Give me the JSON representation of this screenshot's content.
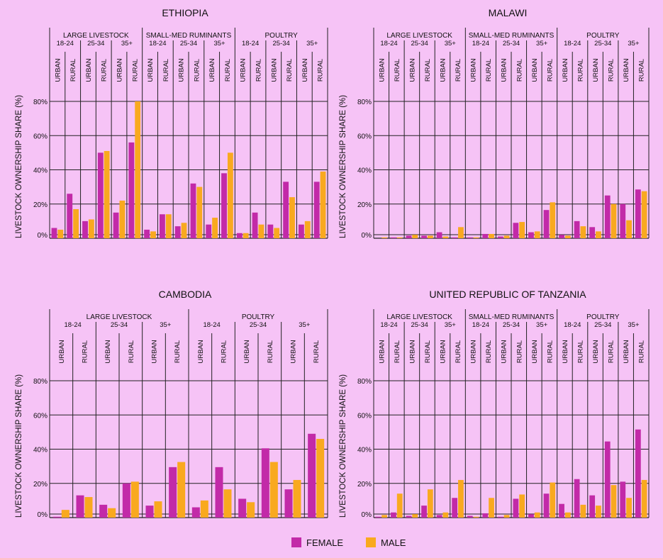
{
  "colors": {
    "background": "#F6C3F6",
    "female": "#C22AA8",
    "male": "#F9A91F",
    "line": "#222222"
  },
  "legend": {
    "female_label": "FEMALE",
    "male_label": "MALE"
  },
  "chart_data": [
    {
      "type": "bar",
      "title": "ETHIOPIA",
      "ylabel": "LIVESTOCK OWNERSHIP SHARE (%)",
      "ylim": [
        0,
        80
      ],
      "yticks": [
        "0%",
        "20%",
        "40%",
        "60%",
        "80%"
      ],
      "groups": [
        {
          "label": "LARGE LIVESTOCK",
          "ages": [
            {
              "label": "18-24",
              "cols": [
                {
                  "label": "URBAN",
                  "female": 6,
                  "male": 5
                },
                {
                  "label": "RURAL",
                  "female": 26,
                  "male": 17
                }
              ]
            },
            {
              "label": "25-34",
              "cols": [
                {
                  "label": "URBAN",
                  "female": 10,
                  "male": 11
                },
                {
                  "label": "RURAL",
                  "female": 50,
                  "male": 51
                }
              ]
            },
            {
              "label": "35+",
              "cols": [
                {
                  "label": "URBAN",
                  "female": 15,
                  "male": 22
                },
                {
                  "label": "RURAL",
                  "female": 56,
                  "male": 80
                }
              ]
            }
          ]
        },
        {
          "label": "SMALL-MED RUMINANTS",
          "ages": [
            {
              "label": "18-24",
              "cols": [
                {
                  "label": "URBAN",
                  "female": 5,
                  "male": 4
                },
                {
                  "label": "RURAL",
                  "female": 14,
                  "male": 14
                }
              ]
            },
            {
              "label": "25-34",
              "cols": [
                {
                  "label": "URBAN",
                  "female": 7,
                  "male": 9
                },
                {
                  "label": "RURAL",
                  "female": 32,
                  "male": 30
                }
              ]
            },
            {
              "label": "35+",
              "cols": [
                {
                  "label": "URBAN",
                  "female": 8,
                  "male": 12
                },
                {
                  "label": "RURAL",
                  "female": 38,
                  "male": 50
                }
              ]
            }
          ]
        },
        {
          "label": "POULTRY",
          "ages": [
            {
              "label": "18-24",
              "cols": [
                {
                  "label": "URBAN",
                  "female": 3,
                  "male": 3
                },
                {
                  "label": "RURAL",
                  "female": 15,
                  "male": 8
                }
              ]
            },
            {
              "label": "25-34",
              "cols": [
                {
                  "label": "URBAN",
                  "female": 8,
                  "male": 6
                },
                {
                  "label": "RURAL",
                  "female": 33,
                  "male": 24
                }
              ]
            },
            {
              "label": "35+",
              "cols": [
                {
                  "label": "URBAN",
                  "female": 8,
                  "male": 10
                },
                {
                  "label": "RURAL",
                  "female": 33,
                  "male": 39
                }
              ]
            }
          ]
        }
      ]
    },
    {
      "type": "bar",
      "title": "MALAWI",
      "ylabel": "LIVESTOCK OWNERSHIP SHARE (%)",
      "ylim": [
        0,
        80
      ],
      "yticks": [
        "0%",
        "20%",
        "40%",
        "60%",
        "80%"
      ],
      "groups": [
        {
          "label": "LARGE LIVESTOCK",
          "ages": [
            {
              "label": "18-24",
              "cols": [
                {
                  "label": "URBAN",
                  "female": 0,
                  "male": 0.5
                },
                {
                  "label": "RURAL",
                  "female": 0.5,
                  "male": 0.5
                }
              ]
            },
            {
              "label": "25-34",
              "cols": [
                {
                  "label": "URBAN",
                  "female": 1.5,
                  "male": 2
                },
                {
                  "label": "RURAL",
                  "female": 1.5,
                  "male": 1.5
                }
              ]
            },
            {
              "label": "35+",
              "cols": [
                {
                  "label": "URBAN",
                  "female": 3.5,
                  "male": 1
                },
                {
                  "label": "RURAL",
                  "female": 0.5,
                  "male": 6.5
                }
              ]
            }
          ]
        },
        {
          "label": "SMALL-MED RUMINANTS",
          "ages": [
            {
              "label": "18-24",
              "cols": [
                {
                  "label": "URBAN",
                  "female": 0.5,
                  "male": 0.5
                },
                {
                  "label": "RURAL",
                  "female": 2.5,
                  "male": 2.5
                }
              ]
            },
            {
              "label": "25-34",
              "cols": [
                {
                  "label": "URBAN",
                  "female": 1,
                  "male": 1.5
                },
                {
                  "label": "RURAL",
                  "female": 9,
                  "male": 9.5
                }
              ]
            },
            {
              "label": "35+",
              "cols": [
                {
                  "label": "URBAN",
                  "female": 3.5,
                  "male": 4
                },
                {
                  "label": "RURAL",
                  "female": 16.5,
                  "male": 21
                }
              ]
            }
          ]
        },
        {
          "label": "POULTRY",
          "ages": [
            {
              "label": "18-24",
              "cols": [
                {
                  "label": "URBAN",
                  "female": 2,
                  "male": 1.5
                },
                {
                  "label": "RURAL",
                  "female": 10,
                  "male": 7
                }
              ]
            },
            {
              "label": "25-34",
              "cols": [
                {
                  "label": "URBAN",
                  "female": 6.5,
                  "male": 4
                },
                {
                  "label": "RURAL",
                  "female": 25,
                  "male": 20
                }
              ]
            },
            {
              "label": "35+",
              "cols": [
                {
                  "label": "URBAN",
                  "female": 20,
                  "male": 10.5
                },
                {
                  "label": "RURAL",
                  "female": 28.5,
                  "male": 27.5
                }
              ]
            }
          ]
        }
      ]
    },
    {
      "type": "bar",
      "title": "CAMBODIA",
      "ylabel": "LIVESTOCK OWNERSHIP SHARE (%)",
      "ylim": [
        0,
        80
      ],
      "yticks": [
        "0%",
        "20%",
        "40%",
        "60%",
        "80%"
      ],
      "groups": [
        {
          "label": "LARGE LIVESTOCK",
          "ages": [
            {
              "label": "18-24",
              "cols": [
                {
                  "label": "URBAN",
                  "female": 0.5,
                  "male": 4.5
                },
                {
                  "label": "RURAL",
                  "female": 13,
                  "male": 12
                }
              ]
            },
            {
              "label": "25-34",
              "cols": [
                {
                  "label": "URBAN",
                  "female": 7.5,
                  "male": 5.5
                },
                {
                  "label": "RURAL",
                  "female": 20,
                  "male": 21
                }
              ]
            },
            {
              "label": "35+",
              "cols": [
                {
                  "label": "URBAN",
                  "female": 7,
                  "male": 9.5
                },
                {
                  "label": "RURAL",
                  "female": 29.5,
                  "male": 32.5
                }
              ]
            }
          ]
        },
        {
          "label": "POULTRY",
          "ages": [
            {
              "label": "18-24",
              "cols": [
                {
                  "label": "URBAN",
                  "female": 6,
                  "male": 10
                },
                {
                  "label": "RURAL",
                  "female": 29.5,
                  "male": 16.5
                }
              ]
            },
            {
              "label": "25-34",
              "cols": [
                {
                  "label": "URBAN",
                  "female": 11,
                  "male": 9
                },
                {
                  "label": "RURAL",
                  "female": 40.5,
                  "male": 32.5
                }
              ]
            },
            {
              "label": "35+",
              "cols": [
                {
                  "label": "URBAN",
                  "female": 16.5,
                  "male": 22
                },
                {
                  "label": "RURAL",
                  "female": 49,
                  "male": 46
                }
              ]
            }
          ]
        }
      ]
    },
    {
      "type": "bar",
      "title": "UNITED REPUBLIC OF TANZANIA",
      "ylabel": "LIVESTOCK OWNERSHIP SHARE (%)",
      "ylim": [
        0,
        80
      ],
      "yticks": [
        "0%",
        "20%",
        "40%",
        "60%",
        "80%"
      ],
      "groups": [
        {
          "label": "LARGE LIVESTOCK",
          "ages": [
            {
              "label": "18-24",
              "cols": [
                {
                  "label": "URBAN",
                  "female": 0.5,
                  "male": 1.5
                },
                {
                  "label": "RURAL",
                  "female": 3,
                  "male": 14
                }
              ]
            },
            {
              "label": "25-34",
              "cols": [
                {
                  "label": "URBAN",
                  "female": 1,
                  "male": 2
                },
                {
                  "label": "RURAL",
                  "female": 7,
                  "male": 16.5
                }
              ]
            },
            {
              "label": "35+",
              "cols": [
                {
                  "label": "URBAN",
                  "female": 1.5,
                  "male": 3
                },
                {
                  "label": "RURAL",
                  "female": 11.5,
                  "male": 22
                }
              ]
            }
          ]
        },
        {
          "label": "SMALL-MED RUMINANTS",
          "ages": [
            {
              "label": "18-24",
              "cols": [
                {
                  "label": "URBAN",
                  "female": 1,
                  "male": 0.5
                },
                {
                  "label": "RURAL",
                  "female": 2.5,
                  "male": 11.5
                }
              ]
            },
            {
              "label": "25-34",
              "cols": [
                {
                  "label": "URBAN",
                  "female": 0.5,
                  "male": 1.5
                },
                {
                  "label": "RURAL",
                  "female": 11,
                  "male": 13.5
                }
              ]
            },
            {
              "label": "35+",
              "cols": [
                {
                  "label": "URBAN",
                  "female": 2,
                  "male": 3
                },
                {
                  "label": "RURAL",
                  "female": 14,
                  "male": 20.5
                }
              ]
            }
          ]
        },
        {
          "label": "POULTRY",
          "ages": [
            {
              "label": "18-24",
              "cols": [
                {
                  "label": "URBAN",
                  "female": 8,
                  "male": 3
                },
                {
                  "label": "RURAL",
                  "female": 22.5,
                  "male": 7.5
                }
              ]
            },
            {
              "label": "25-34",
              "cols": [
                {
                  "label": "URBAN",
                  "female": 13,
                  "male": 7
                },
                {
                  "label": "RURAL",
                  "female": 44.5,
                  "male": 19
                }
              ]
            },
            {
              "label": "35+",
              "cols": [
                {
                  "label": "URBAN",
                  "female": 21,
                  "male": 11.5
                },
                {
                  "label": "RURAL",
                  "female": 51.5,
                  "male": 22
                }
              ]
            }
          ]
        }
      ]
    }
  ]
}
